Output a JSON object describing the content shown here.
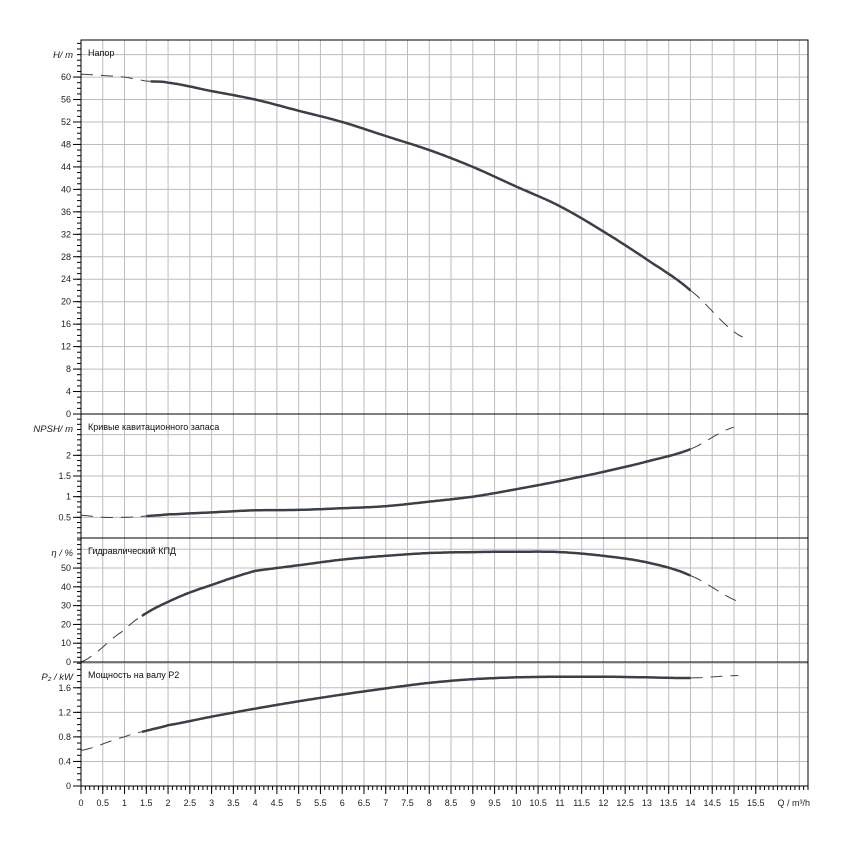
{
  "x_axis": {
    "label": "Q / m³/h",
    "ticks": [
      0,
      0.5,
      1,
      1.5,
      2,
      2.5,
      3,
      3.5,
      4,
      4.5,
      5,
      5.5,
      6,
      6.5,
      7,
      7.5,
      8,
      8.5,
      9,
      9.5,
      10,
      10.5,
      11,
      11.5,
      12,
      12.5,
      13,
      13.5,
      14,
      14.5,
      15,
      15.5
    ],
    "range": [
      0,
      16.7
    ]
  },
  "colors": {
    "curve": "#3a4048",
    "grid": "#bdbdbd",
    "border": "#000000"
  },
  "chart_data": [
    {
      "type": "line",
      "title": "Напор",
      "ylabel": "H/ m",
      "ylim": [
        0,
        66.6
      ],
      "yticks": [
        0,
        4,
        8,
        12,
        16,
        20,
        24,
        28,
        32,
        36,
        40,
        44,
        48,
        52,
        56,
        60
      ],
      "grid_step": 4,
      "solid_range": [
        1.6,
        14
      ],
      "x": [
        0,
        1,
        1.5,
        2,
        3,
        4,
        5,
        6,
        7,
        8,
        9,
        10,
        11,
        12,
        13,
        14,
        15.2
      ],
      "y": [
        60.5,
        60,
        59.3,
        59,
        57.5,
        56,
        54,
        52,
        49.5,
        47,
        44,
        40.5,
        37,
        32.5,
        27.5,
        22,
        13.7
      ]
    },
    {
      "type": "line",
      "title": "Кривые кавитационного запаса",
      "ylabel": "NPSH/ m",
      "ylim": [
        0,
        3
      ],
      "yticks": [
        0.5,
        1,
        1.5,
        2
      ],
      "grid_step": 0.5,
      "solid_range": [
        1.5,
        14
      ],
      "x": [
        0,
        0.5,
        1,
        1.5,
        2,
        3,
        4,
        5,
        6,
        7,
        8,
        9,
        10,
        11,
        12,
        13,
        14,
        15
      ],
      "y": [
        0.55,
        0.5,
        0.5,
        0.53,
        0.57,
        0.62,
        0.67,
        0.68,
        0.72,
        0.77,
        0.88,
        1.0,
        1.18,
        1.38,
        1.6,
        1.85,
        2.15,
        2.68
      ]
    },
    {
      "type": "line",
      "title": "Гидравлический КПД",
      "ylabel": "η / %",
      "ylim": [
        0,
        66
      ],
      "yticks": [
        0,
        10,
        20,
        30,
        40,
        50
      ],
      "grid_step": 10,
      "solid_range": [
        1.4,
        14
      ],
      "x": [
        0,
        1,
        1.5,
        2,
        2.5,
        3,
        3.5,
        4,
        5,
        6,
        7,
        8,
        9,
        10,
        11,
        12,
        13,
        14,
        15.2
      ],
      "y": [
        0,
        17,
        26,
        32,
        37,
        41,
        45,
        48.5,
        51.5,
        54.5,
        56.5,
        58,
        58.5,
        58.7,
        58.5,
        56.5,
        53,
        46,
        31.5
      ]
    },
    {
      "type": "line",
      "title": "Мощность на валу P2",
      "ylabel": "P₂ / kW",
      "ylim": [
        0,
        2.02
      ],
      "yticks": [
        0,
        0.4,
        0.8,
        1.2,
        1.6
      ],
      "grid_step": 0.4,
      "solid_range": [
        1.4,
        14
      ],
      "x": [
        0,
        1,
        1.5,
        2,
        3,
        4,
        5,
        6,
        7,
        8,
        9,
        10,
        11,
        12,
        13,
        14,
        15.1
      ],
      "y": [
        0.58,
        0.8,
        0.9,
        0.99,
        1.13,
        1.26,
        1.38,
        1.49,
        1.59,
        1.68,
        1.74,
        1.77,
        1.78,
        1.78,
        1.77,
        1.76,
        1.8
      ]
    }
  ]
}
